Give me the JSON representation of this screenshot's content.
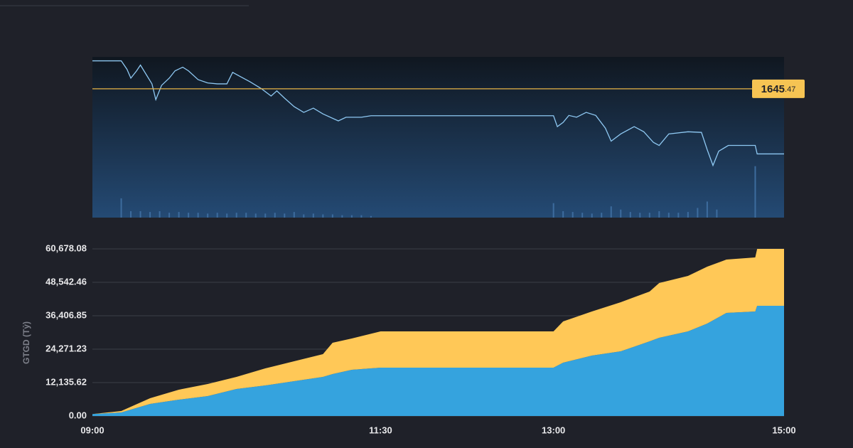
{
  "chart_data": [
    {
      "type": "line",
      "color": "#8ec8f2",
      "xlim": [
        "09:00",
        "15:00"
      ],
      "ylim": [
        1603,
        1656
      ],
      "x": [
        "09:00",
        "09:15",
        "09:18",
        "09:20",
        "09:23",
        "09:25",
        "09:28",
        "09:31",
        "09:33",
        "09:36",
        "09:40",
        "09:43",
        "09:47",
        "09:50",
        "09:55",
        "10:00",
        "10:05",
        "10:10",
        "10:13",
        "10:17",
        "10:22",
        "10:28",
        "10:33",
        "10:36",
        "10:40",
        "10:45",
        "10:50",
        "10:55",
        "11:00",
        "11:08",
        "11:12",
        "11:20",
        "11:25",
        "11:30",
        "13:00",
        "13:02",
        "13:05",
        "13:08",
        "13:12",
        "13:17",
        "13:22",
        "13:27",
        "13:30",
        "13:35",
        "13:42",
        "13:47",
        "13:52",
        "13:55",
        "14:00",
        "14:10",
        "14:17",
        "14:20",
        "14:23",
        "14:26",
        "14:31",
        "14:45",
        "14:46",
        "15:00"
      ],
      "values": [
        1654.7,
        1654.7,
        1651.9,
        1649.0,
        1651.4,
        1653.3,
        1650.2,
        1647.1,
        1641.9,
        1646.6,
        1649.0,
        1651.4,
        1652.6,
        1651.4,
        1648.5,
        1647.4,
        1647.1,
        1647.1,
        1650.9,
        1649.5,
        1647.8,
        1645.5,
        1643.1,
        1644.8,
        1642.4,
        1639.6,
        1637.7,
        1639.1,
        1637.2,
        1634.9,
        1636.1,
        1636.1,
        1636.6,
        1636.6,
        1636.6,
        1633.0,
        1634.4,
        1636.7,
        1636.1,
        1637.7,
        1636.7,
        1632.5,
        1628.2,
        1630.6,
        1633.0,
        1631.3,
        1627.8,
        1626.8,
        1630.6,
        1631.3,
        1631.1,
        1625.4,
        1620.2,
        1624.9,
        1626.8,
        1626.8,
        1624.0,
        1624.0
      ],
      "reference": {
        "value": 1645.47,
        "label": "1645.47"
      },
      "reference_color": "#e8b446",
      "volume": {
        "color": "#3d6c9e",
        "y2lim": [
          0,
          100
        ],
        "x": [
          "09:15",
          "09:20",
          "09:25",
          "09:30",
          "09:35",
          "09:40",
          "09:45",
          "09:50",
          "09:55",
          "10:00",
          "10:05",
          "10:10",
          "10:15",
          "10:20",
          "10:25",
          "10:30",
          "10:35",
          "10:40",
          "10:45",
          "10:50",
          "10:55",
          "11:00",
          "11:05",
          "11:10",
          "11:15",
          "11:20",
          "11:25",
          "13:00",
          "13:05",
          "13:10",
          "13:15",
          "13:20",
          "13:25",
          "13:30",
          "13:35",
          "13:40",
          "13:45",
          "13:50",
          "13:55",
          "14:00",
          "14:05",
          "14:10",
          "14:15",
          "14:20",
          "14:25",
          "14:45"
        ],
        "values": [
          12,
          4,
          4,
          3.5,
          4,
          3,
          3.5,
          3,
          3,
          2.5,
          3,
          2.5,
          3,
          3,
          2.5,
          2.5,
          3,
          2.5,
          3.5,
          2,
          2.5,
          2,
          2,
          1.5,
          1.5,
          1.5,
          1,
          9,
          4,
          3.5,
          3,
          2.5,
          3,
          7,
          5,
          3.5,
          3,
          3,
          4,
          3,
          3,
          3.5,
          6,
          10,
          5,
          32
        ]
      }
    },
    {
      "type": "stacked-area",
      "y_label": "GTGD (Tỷ)",
      "xlim": [
        "09:00",
        "15:00"
      ],
      "xticks": [
        "09:00",
        "11:30",
        "13:00",
        "15:00"
      ],
      "ylim": [
        0,
        60678.08
      ],
      "yticks": [
        {
          "value": 0,
          "label": "0.00"
        },
        {
          "value": 12135.616,
          "label": "12,135.62"
        },
        {
          "value": 24271.232,
          "label": "24,271.23"
        },
        {
          "value": 36406.848,
          "label": "36,406.85"
        },
        {
          "value": 48542.464,
          "label": "48,542.46"
        },
        {
          "value": 60678.08,
          "label": "60,678.08"
        }
      ],
      "grid": true,
      "x": [
        "09:00",
        "09:15",
        "09:30",
        "09:45",
        "10:00",
        "10:15",
        "10:30",
        "10:45",
        "11:00",
        "11:05",
        "11:15",
        "11:30",
        "13:00",
        "13:05",
        "13:20",
        "13:35",
        "13:50",
        "13:55",
        "14:10",
        "14:20",
        "14:30",
        "14:45",
        "14:46",
        "15:00"
      ],
      "series": [
        {
          "color": "#35a3de",
          "values": [
            700,
            1291,
            4389,
            5939,
            7230,
            9812,
            11103,
            12652,
            14201,
            15234,
            16783,
            17558,
            17558,
            19365,
            21947,
            23496,
            27111,
            28402,
            30727,
            33567,
            37440,
            37956,
            40022,
            40022
          ]
        },
        {
          "color": "#ffc857",
          "values": [
            0,
            516,
            2066,
            3614,
            4389,
            4389,
            6197,
            7230,
            8263,
            11362,
            11362,
            13169,
            13169,
            14977,
            16010,
            17817,
            18075,
            19882,
            20139,
            20655,
            19364,
            19623,
            20656.08,
            20656.08
          ]
        }
      ]
    }
  ]
}
